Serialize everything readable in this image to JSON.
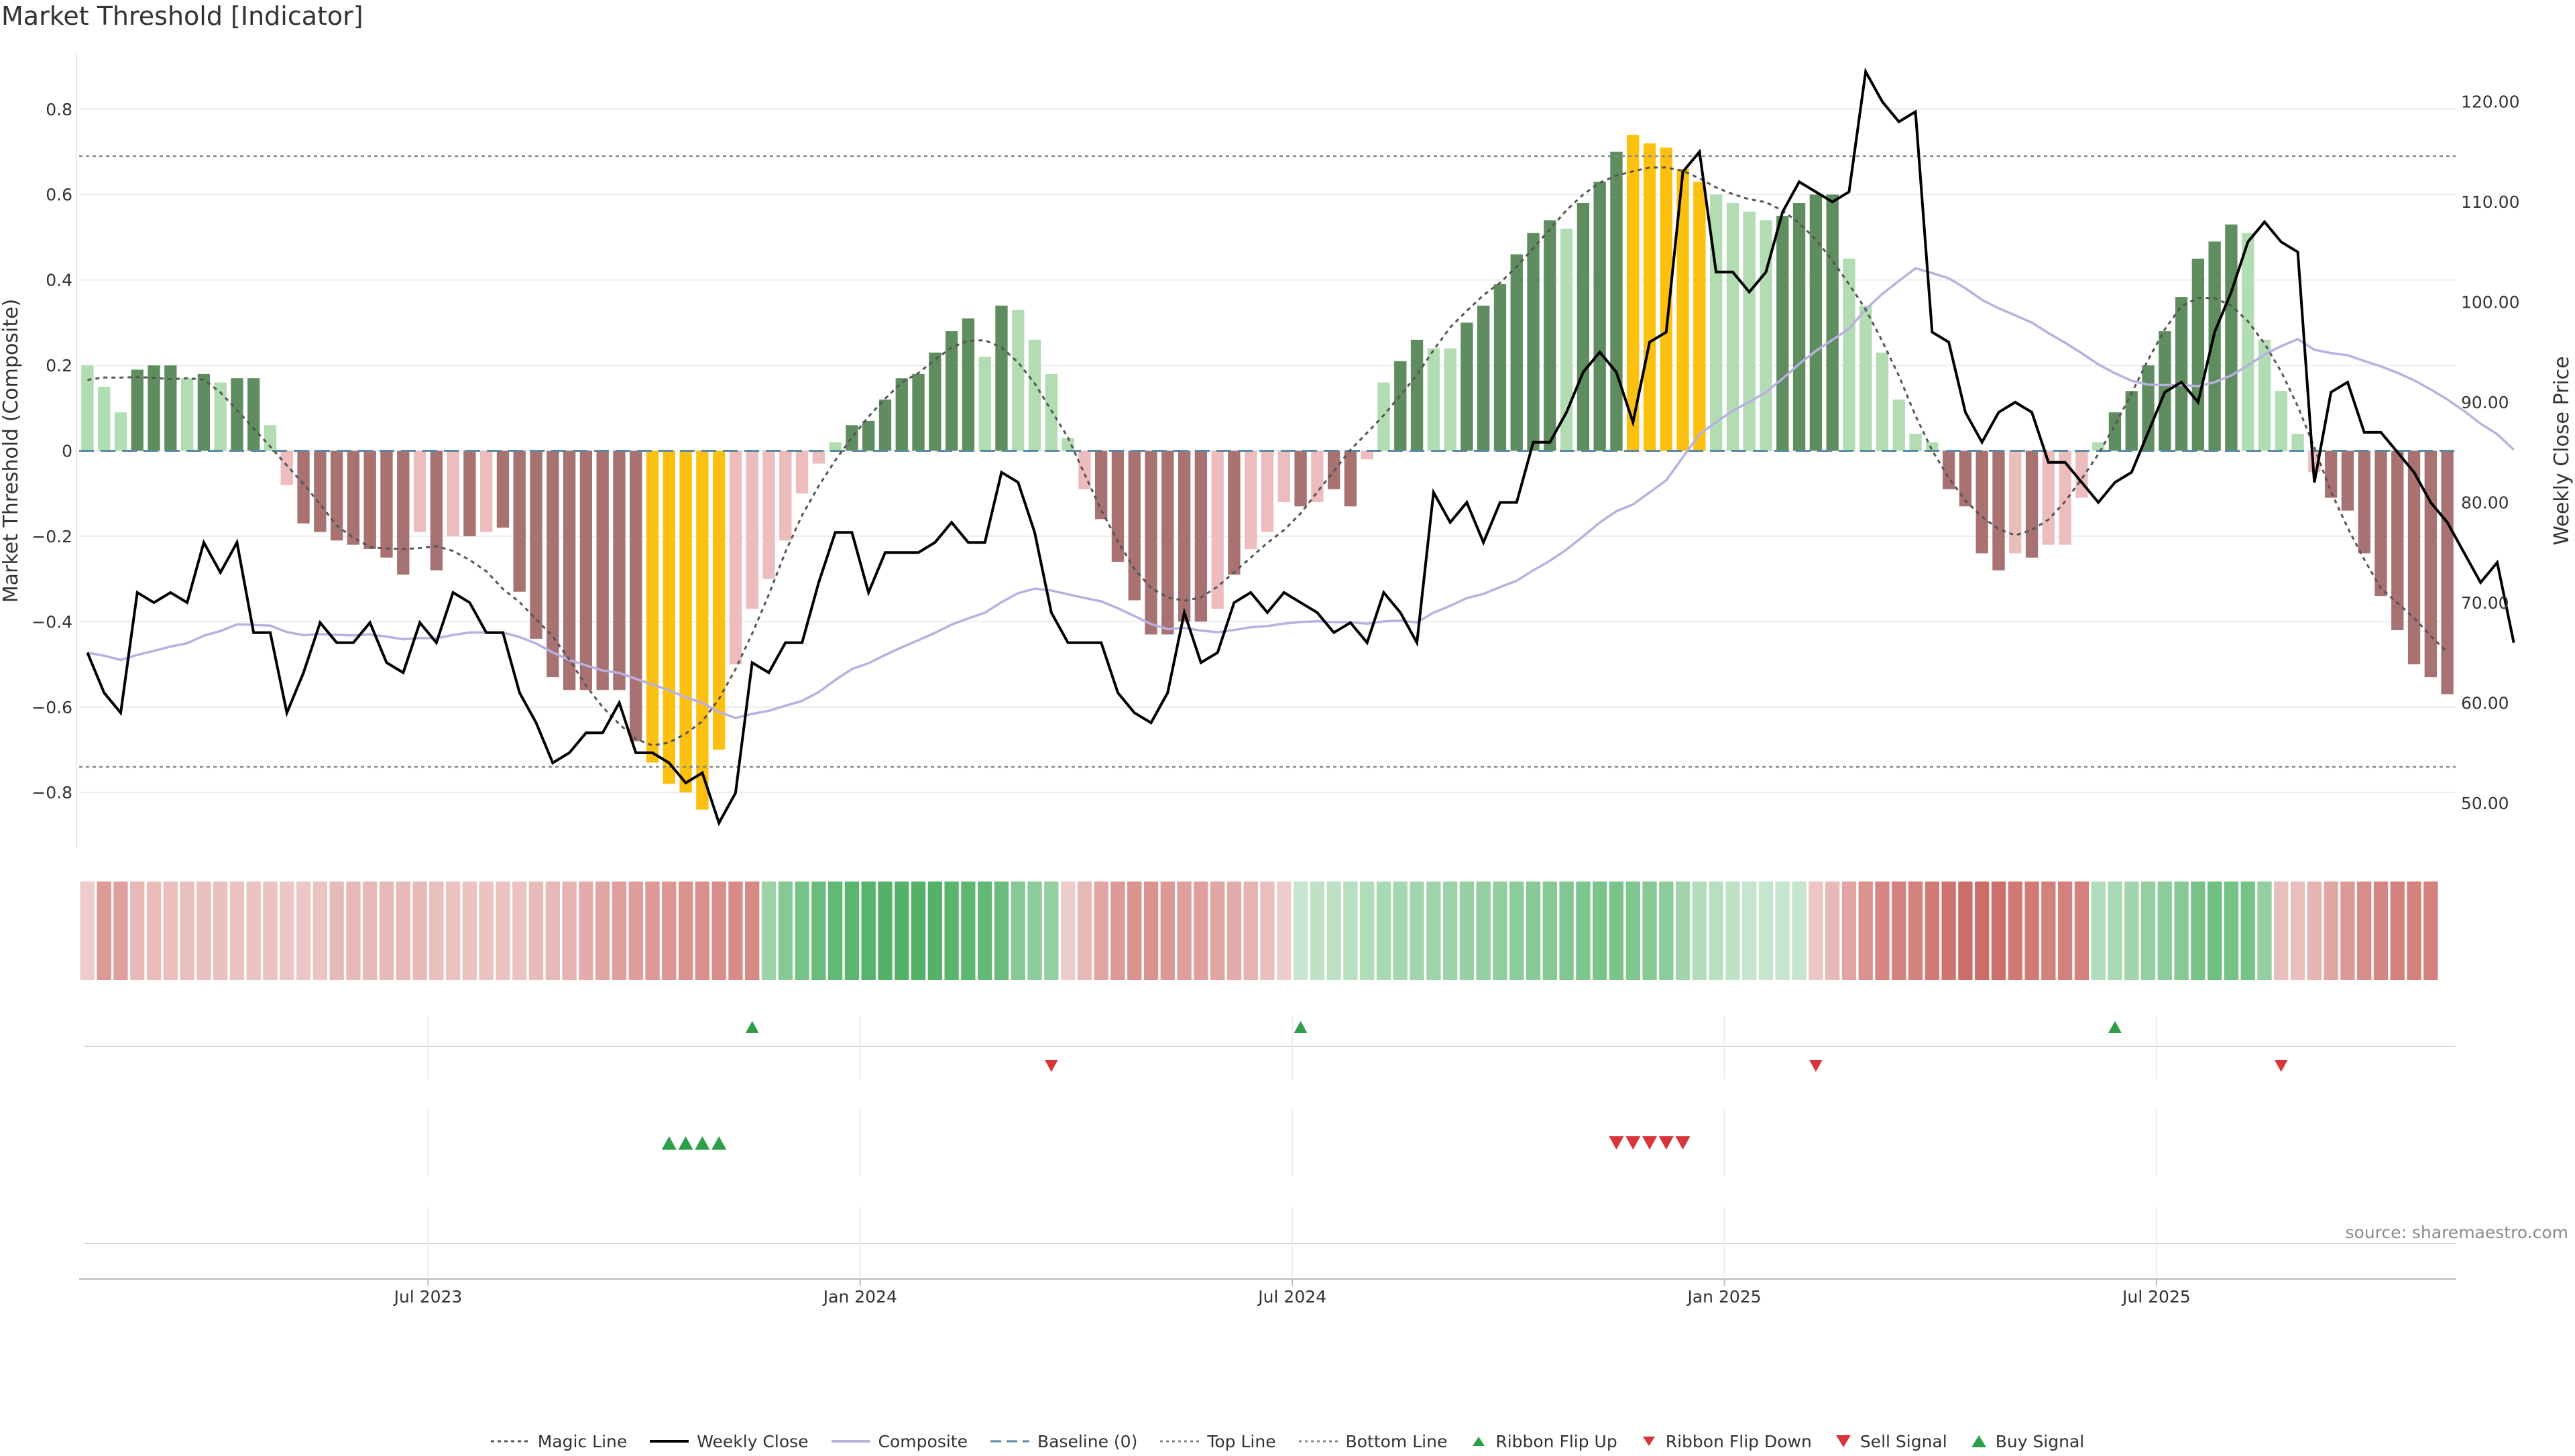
{
  "title": "Market Threshold [Indicator]",
  "source": "source: sharemaestro.com",
  "colors": {
    "bull_dark": "#5f8d5f",
    "bull_light": "#b2dcb2",
    "bear_dark": "#a87272",
    "bear_light": "#edbcbc",
    "extreme": "#fcc010",
    "weekly_close": "#000000",
    "magic_line": "#555555",
    "composite": "#b8b0e0",
    "baseline": "#5c8aa0",
    "ribbon_green": "#4caf62",
    "ribbon_red": "#c9605b",
    "up_marker": "#2e9e4a",
    "down_marker": "#d8343a"
  },
  "legend": [
    {
      "label": "Magic Line",
      "icon": "dotted-line-dark"
    },
    {
      "label": "Weekly Close",
      "icon": "solid-line-black"
    },
    {
      "label": "Composite",
      "icon": "solid-line-lavender"
    },
    {
      "label": "Baseline (0)",
      "icon": "dashed-line-blue"
    },
    {
      "label": "Top Line",
      "icon": "dotted-line-grey"
    },
    {
      "label": "Bottom Line",
      "icon": "dotted-line-grey"
    },
    {
      "label": "Ribbon Flip Up",
      "icon": "triangle-up-green"
    },
    {
      "label": "Ribbon Flip Down",
      "icon": "triangle-down-red"
    },
    {
      "label": "Sell Signal",
      "icon": "triangle-down-red-large"
    },
    {
      "label": "Buy Signal",
      "icon": "triangle-up-green-large"
    }
  ],
  "chart_data": {
    "type": "bar",
    "title": "Market Threshold [Indicator]",
    "ylabel": "Market Threshold (Composite)",
    "ylabel_right": "Weekly Close Price",
    "ylim": [
      -0.93,
      0.93
    ],
    "ylim_right": [
      45.5,
      124.8
    ],
    "y_ticks": [
      "0.8",
      "0.6",
      "0.4",
      "0.2",
      "0",
      "−0.2",
      "−0.4",
      "−0.6",
      "−0.8"
    ],
    "y_tick_values": [
      0.8,
      0.6,
      0.4,
      0.2,
      0,
      -0.2,
      -0.4,
      -0.6,
      -0.8
    ],
    "y_right_ticks": [
      "120.00",
      "110.00",
      "100.00",
      "90.00",
      "80.00",
      "70.00",
      "60.00",
      "50.00"
    ],
    "y_right_tick_values": [
      120,
      110,
      100,
      90,
      80,
      70,
      60,
      50
    ],
    "x_ticks": [
      "Jul 2023",
      "Jan 2024",
      "Jul 2024",
      "Jan 2025",
      "Jul 2025"
    ],
    "x_tick_weeks": [
      21,
      47,
      73,
      99,
      125
    ],
    "top_line": 0.69,
    "bottom_line": -0.74,
    "baseline": 0,
    "grid": true,
    "legend_position": "bottom",
    "composite_bars": [
      0.2,
      0.15,
      0.09,
      0.19,
      0.2,
      0.2,
      0.17,
      0.18,
      0.16,
      0.17,
      0.17,
      0.06,
      -0.08,
      -0.17,
      -0.19,
      -0.21,
      -0.22,
      -0.23,
      -0.25,
      -0.29,
      -0.19,
      -0.28,
      -0.2,
      -0.2,
      -0.19,
      -0.18,
      -0.33,
      -0.44,
      -0.53,
      -0.56,
      -0.56,
      -0.56,
      -0.56,
      -0.68,
      -0.73,
      -0.78,
      -0.8,
      -0.84,
      -0.7,
      -0.5,
      -0.37,
      -0.3,
      -0.21,
      -0.1,
      -0.03,
      0.02,
      0.06,
      0.07,
      0.12,
      0.17,
      0.18,
      0.23,
      0.28,
      0.31,
      0.22,
      0.34,
      0.33,
      0.26,
      0.18,
      0.03,
      -0.09,
      -0.16,
      -0.26,
      -0.35,
      -0.43,
      -0.43,
      -0.4,
      -0.4,
      -0.37,
      -0.29,
      -0.23,
      -0.19,
      -0.12,
      -0.13,
      -0.12,
      -0.09,
      -0.13,
      -0.02,
      0.16,
      0.21,
      0.26,
      0.24,
      0.24,
      0.3,
      0.34,
      0.39,
      0.46,
      0.51,
      0.54,
      0.52,
      0.58,
      0.63,
      0.7,
      0.74,
      0.72,
      0.71,
      0.66,
      0.63,
      0.6,
      0.58,
      0.56,
      0.54,
      0.55,
      0.58,
      0.6,
      0.6,
      0.45,
      0.34,
      0.23,
      0.12,
      0.04,
      0.02,
      -0.09,
      -0.13,
      -0.24,
      -0.28,
      -0.24,
      -0.25,
      -0.22,
      -0.22,
      -0.11,
      0.02,
      0.09,
      0.14,
      0.2,
      0.28,
      0.36,
      0.45,
      0.49,
      0.53,
      0.51,
      0.26,
      0.14,
      0.04,
      -0.05,
      -0.11,
      -0.14,
      -0.24,
      -0.34,
      -0.42,
      -0.5,
      -0.53,
      -0.57
    ],
    "bar_styles": [
      "bl",
      "bl",
      "bl",
      "bd",
      "bd",
      "bd",
      "bl",
      "bd",
      "bl",
      "bd",
      "bd",
      "bl",
      "rl",
      "rd",
      "rd",
      "rd",
      "rd",
      "rd",
      "rd",
      "rd",
      "rl",
      "rd",
      "rl",
      "rd",
      "rl",
      "rd",
      "rd",
      "rd",
      "rd",
      "rd",
      "rd",
      "rd",
      "rd",
      "rd",
      "ex",
      "ex",
      "ex",
      "ex",
      "ex",
      "rl",
      "rl",
      "rl",
      "rl",
      "rl",
      "rl",
      "bl",
      "bd",
      "bd",
      "bd",
      "bd",
      "bd",
      "bd",
      "bd",
      "bd",
      "bl",
      "bd",
      "bl",
      "bl",
      "bl",
      "bl",
      "rl",
      "rd",
      "rd",
      "rd",
      "rd",
      "rd",
      "rd",
      "rd",
      "rl",
      "rd",
      "rl",
      "rl",
      "rl",
      "rd",
      "rl",
      "rd",
      "rd",
      "rl",
      "bl",
      "bd",
      "bd",
      "bl",
      "bl",
      "bd",
      "bd",
      "bd",
      "bd",
      "bd",
      "bd",
      "bl",
      "bd",
      "bd",
      "bd",
      "ex",
      "ex",
      "ex",
      "ex",
      "ex",
      "bl",
      "bl",
      "bl",
      "bl",
      "bd",
      "bd",
      "bd",
      "bd",
      "bl",
      "bl",
      "bl",
      "bl",
      "bl",
      "bl",
      "rd",
      "rd",
      "rd",
      "rd",
      "rl",
      "rd",
      "rl",
      "rl",
      "rl",
      "bl",
      "bd",
      "bd",
      "bd",
      "bd",
      "bd",
      "bd",
      "bd",
      "bd",
      "bl",
      "bl",
      "bl",
      "bl",
      "rl",
      "rd",
      "rd",
      "rd",
      "rd",
      "rd",
      "rd",
      "rd",
      "rd"
    ],
    "weekly_close": [
      65,
      61,
      59,
      71,
      70,
      71,
      70,
      76,
      73,
      76,
      67,
      67,
      59,
      63,
      68,
      66,
      66,
      68,
      64,
      63,
      68,
      66,
      71,
      70,
      67,
      67,
      61,
      58,
      54,
      55,
      57,
      57,
      60,
      55,
      55,
      54,
      52,
      53,
      48,
      51,
      64,
      63,
      66,
      66,
      72,
      77,
      77,
      71,
      75,
      75,
      75,
      76,
      78,
      76,
      76,
      83,
      82,
      77,
      69,
      66,
      66,
      66,
      61,
      59,
      58,
      61,
      69,
      64,
      65,
      70,
      71,
      69,
      71,
      70,
      69,
      67,
      68,
      66,
      71,
      69,
      66,
      81,
      78,
      80,
      76,
      80,
      80,
      86,
      86,
      89,
      93,
      95,
      93,
      88,
      96,
      97,
      113,
      115,
      103,
      103,
      101,
      103,
      109,
      112,
      111,
      110,
      111,
      123,
      120,
      118,
      119,
      97,
      96,
      89,
      86,
      89,
      90,
      89,
      84,
      84,
      82,
      80,
      82,
      83,
      87,
      91,
      92,
      90,
      97,
      101,
      106,
      108,
      106,
      105,
      82,
      91,
      92,
      87,
      87,
      85,
      83,
      80,
      78,
      75,
      72,
      74,
      66
    ]
  },
  "signal_rows": [
    {
      "kind": "ribbon_flip_up",
      "weeks": [
        40,
        73,
        122
      ]
    },
    {
      "kind": "ribbon_flip_down",
      "weeks": [
        58,
        104,
        132
      ]
    },
    {
      "kind": "buy_signal",
      "weeks": [
        35,
        36,
        37,
        38
      ]
    },
    {
      "kind": "sell_signal",
      "weeks": [
        92,
        93,
        94,
        95,
        96
      ]
    }
  ],
  "ribbon": {
    "sides": [
      "r",
      "r",
      "r",
      "r",
      "r",
      "r",
      "r",
      "r",
      "r",
      "r",
      "r",
      "r",
      "r",
      "r",
      "r",
      "r",
      "r",
      "r",
      "r",
      "r",
      "r",
      "r",
      "r",
      "r",
      "r",
      "r",
      "r",
      "r",
      "r",
      "r",
      "r",
      "r",
      "r",
      "r",
      "r",
      "r",
      "r",
      "r",
      "r",
      "r",
      "r",
      "g",
      "g",
      "g",
      "g",
      "g",
      "g",
      "g",
      "g",
      "g",
      "g",
      "g",
      "g",
      "g",
      "g",
      "g",
      "g",
      "g",
      "g",
      "r",
      "r",
      "r",
      "r",
      "r",
      "r",
      "r",
      "r",
      "r",
      "r",
      "r",
      "r",
      "r",
      "r",
      "g",
      "g",
      "g",
      "g",
      "g",
      "g",
      "g",
      "g",
      "g",
      "g",
      "g",
      "g",
      "g",
      "g",
      "g",
      "g",
      "g",
      "g",
      "g",
      "g",
      "g",
      "g",
      "g",
      "g",
      "g",
      "g",
      "g",
      "g",
      "g",
      "g",
      "g",
      "r",
      "r",
      "r",
      "r",
      "r",
      "r",
      "r",
      "r",
      "r",
      "r",
      "r",
      "r",
      "r",
      "r",
      "r",
      "r",
      "r",
      "g",
      "g",
      "g",
      "g",
      "g",
      "g",
      "g",
      "g",
      "g",
      "g",
      "g",
      "r",
      "r",
      "r",
      "r",
      "r",
      "r",
      "r",
      "r",
      "r",
      "r"
    ],
    "strengths": [
      0.15,
      0.55,
      0.5,
      0.3,
      0.28,
      0.26,
      0.25,
      0.24,
      0.24,
      0.22,
      0.22,
      0.22,
      0.2,
      0.2,
      0.22,
      0.3,
      0.3,
      0.3,
      0.3,
      0.3,
      0.3,
      0.25,
      0.22,
      0.22,
      0.22,
      0.22,
      0.22,
      0.28,
      0.3,
      0.35,
      0.4,
      0.45,
      0.5,
      0.52,
      0.55,
      0.58,
      0.6,
      0.62,
      0.64,
      0.66,
      0.68,
      0.45,
      0.6,
      0.7,
      0.8,
      0.85,
      0.9,
      0.92,
      0.95,
      0.95,
      0.95,
      0.95,
      0.9,
      0.88,
      0.85,
      0.8,
      0.6,
      0.55,
      0.5,
      0.15,
      0.3,
      0.45,
      0.55,
      0.6,
      0.6,
      0.55,
      0.5,
      0.5,
      0.45,
      0.4,
      0.35,
      0.25,
      0.15,
      0.15,
      0.2,
      0.22,
      0.25,
      0.3,
      0.35,
      0.38,
      0.4,
      0.42,
      0.45,
      0.48,
      0.5,
      0.52,
      0.55,
      0.58,
      0.6,
      0.62,
      0.65,
      0.68,
      0.68,
      0.65,
      0.6,
      0.55,
      0.4,
      0.3,
      0.25,
      0.2,
      0.15,
      0.15,
      0.15,
      0.15,
      0.2,
      0.3,
      0.45,
      0.6,
      0.7,
      0.75,
      0.75,
      0.8,
      0.85,
      0.9,
      0.9,
      0.88,
      0.8,
      0.8,
      0.75,
      0.75,
      0.75,
      0.3,
      0.35,
      0.4,
      0.5,
      0.55,
      0.6,
      0.7,
      0.75,
      0.7,
      0.7,
      0.5,
      0.25,
      0.25,
      0.35,
      0.45,
      0.55,
      0.65,
      0.7,
      0.75,
      0.75,
      0.75
    ]
  }
}
